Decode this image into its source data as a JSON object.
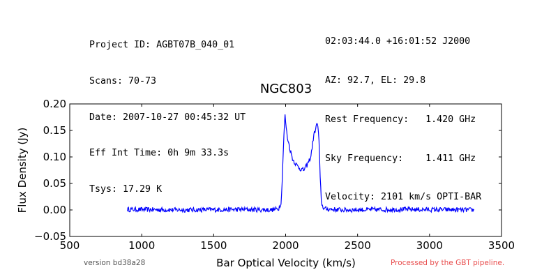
{
  "header_left": [
    "Project ID: AGBT07B_040_01",
    "Scans: 70-73",
    "Date: 2007-10-27 00:45:32 UT",
    "Eff Int Time: 0h 9m 33.3s",
    "Tsys: 17.29 K"
  ],
  "header_right": [
    "02:03:44.0 +16:01:52 J2000",
    "AZ: 92.7, EL: 29.8",
    "Rest Frequency:   1.420 GHz",
    "Sky Frequency:    1.411 GHz",
    "Velocity: 2101 km/s OPTI-BAR"
  ],
  "footer": {
    "version": "version bd38a28",
    "pipeline": "Processed by the GBT pipeline."
  },
  "colors": {
    "line": "#0000ff",
    "pipeline_text": "#e84c4c",
    "version_text": "#555555"
  },
  "chart_data": {
    "type": "line",
    "title": "NGC803",
    "xlabel": "Bar Optical Velocity (km/s)",
    "ylabel": "Flux Density (Jy)",
    "xlim": [
      500,
      3500
    ],
    "ylim": [
      -0.05,
      0.2
    ],
    "xticks": [
      "500",
      "1000",
      "1500",
      "2000",
      "2500",
      "3000",
      "3500"
    ],
    "yticks": [
      "−0.05",
      "0.00",
      "0.05",
      "0.10",
      "0.15",
      "0.20"
    ],
    "grid": false,
    "series": [
      {
        "x": [
          900,
          1300,
          1700,
          1900,
          1950,
          1970,
          1985,
          1995,
          2010,
          2030,
          2050,
          2075,
          2100,
          2125,
          2150,
          2175,
          2195,
          2210,
          2222,
          2232,
          2240,
          2250,
          2270,
          2400,
          2800,
          3310
        ],
        "y": [
          0.001,
          0.0,
          0.001,
          0.0,
          0.002,
          0.015,
          0.12,
          0.18,
          0.14,
          0.115,
          0.095,
          0.085,
          0.078,
          0.075,
          0.085,
          0.1,
          0.14,
          0.155,
          0.165,
          0.13,
          0.06,
          0.01,
          0.002,
          0.0,
          0.001,
          0.0
        ]
      }
    ]
  }
}
